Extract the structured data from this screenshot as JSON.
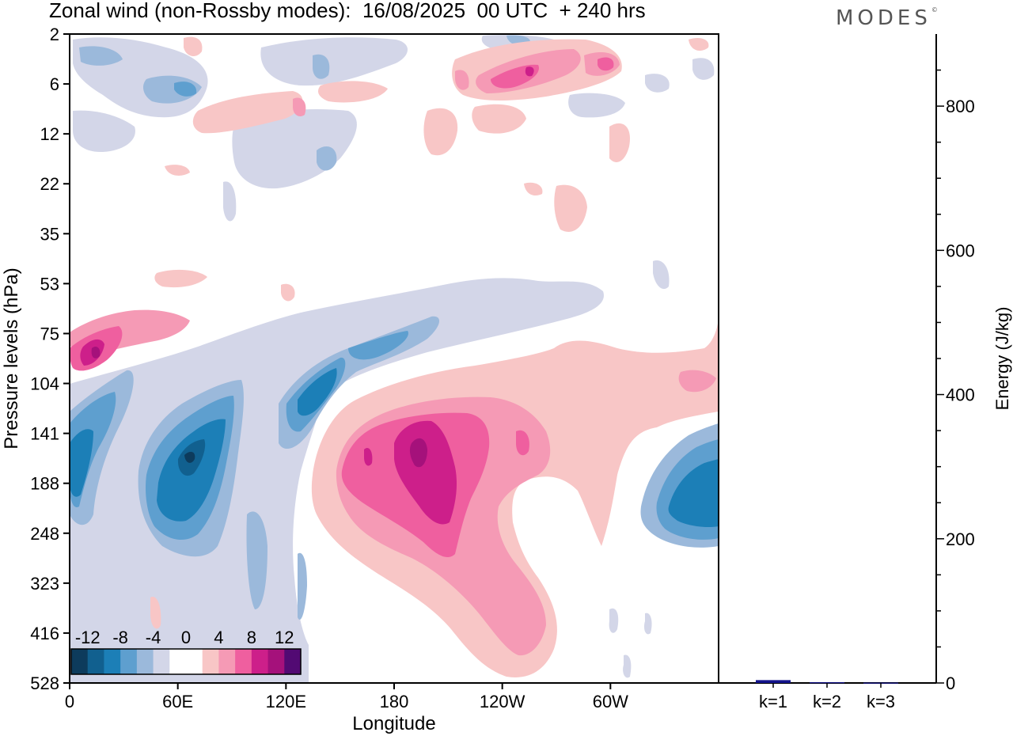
{
  "header": {
    "title": "Zonal wind (non-Rossby modes):  16/08/2025  00 UTC  + 240 hrs",
    "brand": "MODES"
  },
  "chart_data": [
    {
      "type": "heatmap",
      "title": "Zonal wind (non-Rossby modes):  16/08/2025  00 UTC  + 240 hrs",
      "xlabel": "Longitude",
      "ylabel": "Pressure levels (hPa)",
      "x_ticks": [
        "0",
        "60E",
        "120E",
        "180",
        "120W",
        "60W"
      ],
      "y_ticks": [
        "2",
        "6",
        "12",
        "22",
        "35",
        "53",
        "75",
        "104",
        "141",
        "188",
        "248",
        "323",
        "416",
        "528"
      ],
      "colorbar": {
        "tick_labels": [
          "-12",
          "-8",
          "-4",
          "0",
          "4",
          "8",
          "12"
        ],
        "levels": [
          -14,
          -12,
          -10,
          -8,
          -6,
          -4,
          -2,
          0,
          2,
          4,
          6,
          8,
          10,
          12,
          14
        ],
        "colors": [
          "#0d3b5c",
          "#11608f",
          "#1c7fb7",
          "#5e9fcf",
          "#9bb9db",
          "#d3d6e8",
          "#ffffff",
          "#ffffff",
          "#f8c6c6",
          "#f59ab5",
          "#ef5f9f",
          "#cd1f8a",
          "#a5117b",
          "#520a73"
        ]
      },
      "features": [
        {
          "name": "Negative jet core near 0-20E",
          "lon_range": [
            0,
            20
          ],
          "level_hPa": 170,
          "value": -8
        },
        {
          "name": "Negative jet core near 60E",
          "lon_range": [
            40,
            90
          ],
          "level_hPa": 165,
          "value": -12
        },
        {
          "name": "Negative jet core near 130E",
          "lon_range": [
            120,
            150
          ],
          "level_hPa": 120,
          "value": -8
        },
        {
          "name": "Negative jet core near 60-30W",
          "lon_range": [
            300,
            360
          ],
          "level_hPa": 185,
          "value": -10
        },
        {
          "name": "Positive jet maximum 180-160W",
          "lon_range": [
            150,
            240
          ],
          "level_hPa": 175,
          "value": 10
        },
        {
          "name": "Positive maximum near 15E",
          "lon_range": [
            0,
            30
          ],
          "level_hPa": 88,
          "value": 10
        },
        {
          "name": "Upper positive band 120W-60W",
          "lon_range": [
            220,
            300
          ],
          "level_hPa": 6,
          "value": 6
        }
      ]
    },
    {
      "type": "bar",
      "categories": [
        "k=1",
        "k=2",
        "k=3"
      ],
      "values": [
        4,
        1,
        0.5
      ],
      "ylabel": "Energy (J/kg)",
      "ylim": [
        0,
        900
      ],
      "y_ticks": [
        "0",
        "200",
        "400",
        "600",
        "800"
      ],
      "bar_color": "#14148c"
    }
  ]
}
